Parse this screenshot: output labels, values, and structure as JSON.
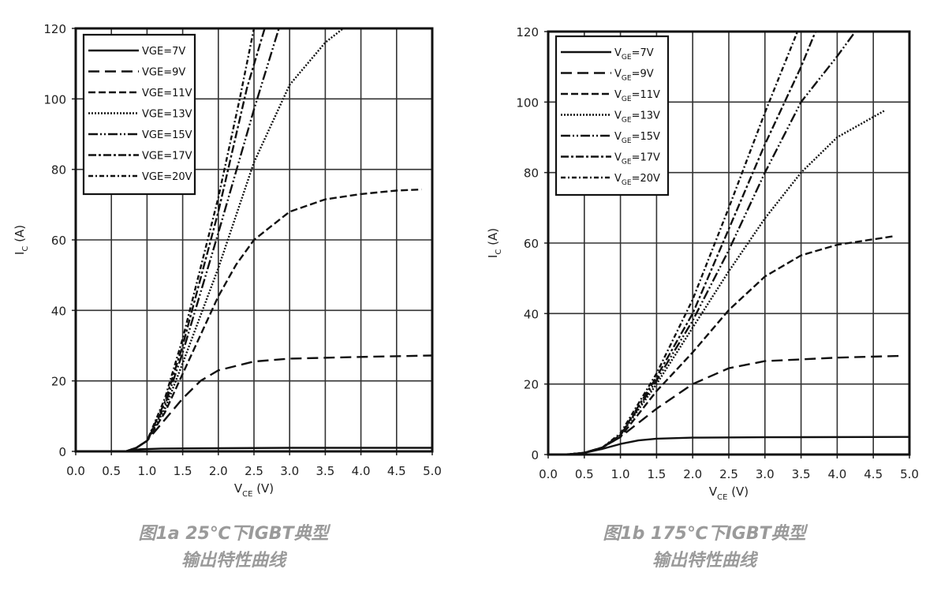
{
  "chart_data": [
    {
      "type": "line",
      "caption_line1": "图1a 25℃下IGBT典型",
      "caption_line2": "输出特性曲线",
      "xlabel_main": "V",
      "xlabel_sub": "CE",
      "xlabel_unit": " (V)",
      "ylabel_main": "I",
      "ylabel_sub": "C",
      "ylabel_unit": " (A)",
      "xlim": [
        0,
        5
      ],
      "ylim": [
        0,
        120
      ],
      "xticks": [
        "0.0",
        "0.5",
        "1.0",
        "1.5",
        "2.0",
        "2.5",
        "3.0",
        "3.5",
        "4.0",
        "4.5",
        "5.0"
      ],
      "yticks": [
        "0",
        "20",
        "40",
        "60",
        "80",
        "100",
        "120"
      ],
      "grid": true,
      "legend_position": "top-left",
      "legend_subscript": false,
      "series": [
        {
          "name": "VGE=7V",
          "label_pre": "VGE",
          "label_post": "=7V",
          "dash": "solid",
          "points": [
            [
              0,
              0
            ],
            [
              0.7,
              0
            ],
            [
              0.9,
              0.6
            ],
            [
              1.2,
              0.8
            ],
            [
              2,
              0.9
            ],
            [
              3,
              1
            ],
            [
              5,
              1
            ]
          ]
        },
        {
          "name": "VGE=9V",
          "label_pre": "VGE",
          "label_post": "=9V",
          "dash": "long-dash",
          "points": [
            [
              0,
              0
            ],
            [
              0.7,
              0
            ],
            [
              0.85,
              1
            ],
            [
              1.0,
              3
            ],
            [
              1.25,
              9
            ],
            [
              1.5,
              15
            ],
            [
              1.75,
              20
            ],
            [
              2.0,
              23
            ],
            [
              2.5,
              25.5
            ],
            [
              3.0,
              26.3
            ],
            [
              4.0,
              26.8
            ],
            [
              5.0,
              27.2
            ]
          ]
        },
        {
          "name": "VGE=11V",
          "label_pre": "VGE",
          "label_post": "=11V",
          "dash": "dash",
          "points": [
            [
              0,
              0
            ],
            [
              0.7,
              0
            ],
            [
              0.85,
              1
            ],
            [
              1.0,
              3
            ],
            [
              1.25,
              11
            ],
            [
              1.5,
              22
            ],
            [
              2.0,
              44
            ],
            [
              2.25,
              53
            ],
            [
              2.5,
              60
            ],
            [
              2.75,
              64
            ],
            [
              3.0,
              68
            ],
            [
              3.5,
              71.5
            ],
            [
              4.0,
              73
            ],
            [
              4.5,
              74
            ],
            [
              4.85,
              74.3
            ]
          ]
        },
        {
          "name": "VGE=13V",
          "label_pre": "VGE",
          "label_post": "=13V",
          "dash": "dot",
          "points": [
            [
              0,
              0
            ],
            [
              0.7,
              0
            ],
            [
              0.85,
              1
            ],
            [
              1.0,
              3
            ],
            [
              1.25,
              12
            ],
            [
              1.5,
              25
            ],
            [
              2.0,
              52
            ],
            [
              2.5,
              82
            ],
            [
              3.0,
              104
            ],
            [
              3.5,
              116
            ],
            [
              3.75,
              120
            ]
          ]
        },
        {
          "name": "VGE=15V",
          "label_pre": "VGE",
          "label_post": "=15V",
          "dash": "dash-dot-dot",
          "points": [
            [
              0,
              0
            ],
            [
              0.7,
              0
            ],
            [
              0.85,
              1
            ],
            [
              1.0,
              3
            ],
            [
              1.25,
              13
            ],
            [
              1.5,
              28
            ],
            [
              2.0,
              62
            ],
            [
              2.5,
              97
            ],
            [
              2.85,
              120
            ]
          ]
        },
        {
          "name": "VGE=17V",
          "label_pre": "VGE",
          "label_post": "=17V",
          "dash": "dash-dot",
          "points": [
            [
              0,
              0
            ],
            [
              0.7,
              0
            ],
            [
              0.85,
              1
            ],
            [
              1.0,
              3
            ],
            [
              1.25,
              14
            ],
            [
              1.5,
              30
            ],
            [
              2.0,
              68
            ],
            [
              2.4,
              103
            ],
            [
              2.65,
              120
            ]
          ]
        },
        {
          "name": "VGE=20V",
          "label_pre": "VGE",
          "label_post": "=20V",
          "dash": "short-dash-dot",
          "points": [
            [
              0,
              0
            ],
            [
              0.7,
              0
            ],
            [
              0.85,
              1
            ],
            [
              1.0,
              3
            ],
            [
              1.25,
              15
            ],
            [
              1.5,
              32
            ],
            [
              2.0,
              72
            ],
            [
              2.3,
              100
            ],
            [
              2.5,
              120
            ]
          ]
        }
      ]
    },
    {
      "type": "line",
      "caption_line1": "图1b 175℃下IGBT典型",
      "caption_line2": "输出特性曲线",
      "xlabel_main": "V",
      "xlabel_sub": "CE",
      "xlabel_unit": " (V)",
      "ylabel_main": "I",
      "ylabel_sub": "C",
      "ylabel_unit": " (A)",
      "xlim": [
        0,
        5
      ],
      "ylim": [
        0,
        120
      ],
      "xticks": [
        "0.0",
        "0.5",
        "1.0",
        "1.5",
        "2.0",
        "2.5",
        "3.0",
        "3.5",
        "4.0",
        "4.5",
        "5.0"
      ],
      "yticks": [
        "0",
        "20",
        "40",
        "60",
        "80",
        "100",
        "120"
      ],
      "grid": true,
      "legend_position": "top-left",
      "legend_subscript": true,
      "series": [
        {
          "name": "VGE=7V",
          "label_pre": "V",
          "label_sub": "GE",
          "label_post": "=7V",
          "dash": "solid",
          "points": [
            [
              0,
              0
            ],
            [
              0.3,
              0.1
            ],
            [
              0.5,
              0.5
            ],
            [
              0.75,
              1.6
            ],
            [
              1.0,
              3
            ],
            [
              1.25,
              4
            ],
            [
              1.5,
              4.5
            ],
            [
              2.0,
              4.8
            ],
            [
              3.0,
              4.9
            ],
            [
              5.0,
              5
            ]
          ]
        },
        {
          "name": "VGE=9V",
          "label_pre": "V",
          "label_sub": "GE",
          "label_post": "=9V",
          "dash": "long-dash",
          "points": [
            [
              0,
              0
            ],
            [
              0.3,
              0.1
            ],
            [
              0.5,
              0.5
            ],
            [
              0.75,
              2
            ],
            [
              1.0,
              5
            ],
            [
              1.5,
              13
            ],
            [
              2.0,
              20
            ],
            [
              2.5,
              24.5
            ],
            [
              3.0,
              26.5
            ],
            [
              4.0,
              27.5
            ],
            [
              4.9,
              28
            ]
          ]
        },
        {
          "name": "VGE=11V",
          "label_pre": "V",
          "label_sub": "GE",
          "label_post": "=11V",
          "dash": "dash",
          "points": [
            [
              0,
              0
            ],
            [
              0.3,
              0.1
            ],
            [
              0.5,
              0.5
            ],
            [
              0.75,
              2
            ],
            [
              1.0,
              5
            ],
            [
              1.5,
              18
            ],
            [
              2.0,
              29
            ],
            [
              2.5,
              41
            ],
            [
              3.0,
              50.5
            ],
            [
              3.5,
              56.5
            ],
            [
              4.0,
              59.5
            ],
            [
              4.8,
              62
            ]
          ]
        },
        {
          "name": "VGE=13V",
          "label_pre": "V",
          "label_sub": "GE",
          "label_post": "=13V",
          "dash": "dot",
          "points": [
            [
              0,
              0
            ],
            [
              0.3,
              0.1
            ],
            [
              0.5,
              0.5
            ],
            [
              0.75,
              2
            ],
            [
              1.0,
              5.5
            ],
            [
              1.5,
              20
            ],
            [
              2.0,
              36
            ],
            [
              2.5,
              52
            ],
            [
              3.0,
              67
            ],
            [
              3.5,
              80
            ],
            [
              4.0,
              90
            ],
            [
              4.65,
              97.5
            ]
          ]
        },
        {
          "name": "VGE=15V",
          "label_pre": "V",
          "label_sub": "GE",
          "label_post": "=15V",
          "dash": "dash-dot-dot",
          "points": [
            [
              0,
              0
            ],
            [
              0.3,
              0.1
            ],
            [
              0.5,
              0.5
            ],
            [
              0.75,
              2
            ],
            [
              1.0,
              5.5
            ],
            [
              1.5,
              21
            ],
            [
              2.0,
              38
            ],
            [
              2.5,
              58
            ],
            [
              3.0,
              80
            ],
            [
              3.5,
              100
            ],
            [
              4.0,
              113
            ],
            [
              4.25,
              120
            ]
          ]
        },
        {
          "name": "VGE=17V",
          "label_pre": "V",
          "label_sub": "GE",
          "label_post": "=17V",
          "dash": "dash-dot",
          "points": [
            [
              0,
              0
            ],
            [
              0.3,
              0.1
            ],
            [
              0.5,
              0.5
            ],
            [
              0.75,
              2
            ],
            [
              1.0,
              5.5
            ],
            [
              1.5,
              22
            ],
            [
              2.0,
              40
            ],
            [
              2.5,
              64
            ],
            [
              3.0,
              88
            ],
            [
              3.5,
              110
            ],
            [
              3.7,
              120
            ]
          ]
        },
        {
          "name": "VGE=20V",
          "label_pre": "V",
          "label_sub": "GE",
          "label_post": "=20V",
          "dash": "short-dash-dot",
          "points": [
            [
              0,
              0
            ],
            [
              0.3,
              0.1
            ],
            [
              0.5,
              0.5
            ],
            [
              0.75,
              2
            ],
            [
              1.0,
              6
            ],
            [
              1.5,
              23
            ],
            [
              2.0,
              44
            ],
            [
              2.5,
              70
            ],
            [
              3.0,
              97
            ],
            [
              3.45,
              120
            ]
          ]
        }
      ]
    }
  ]
}
